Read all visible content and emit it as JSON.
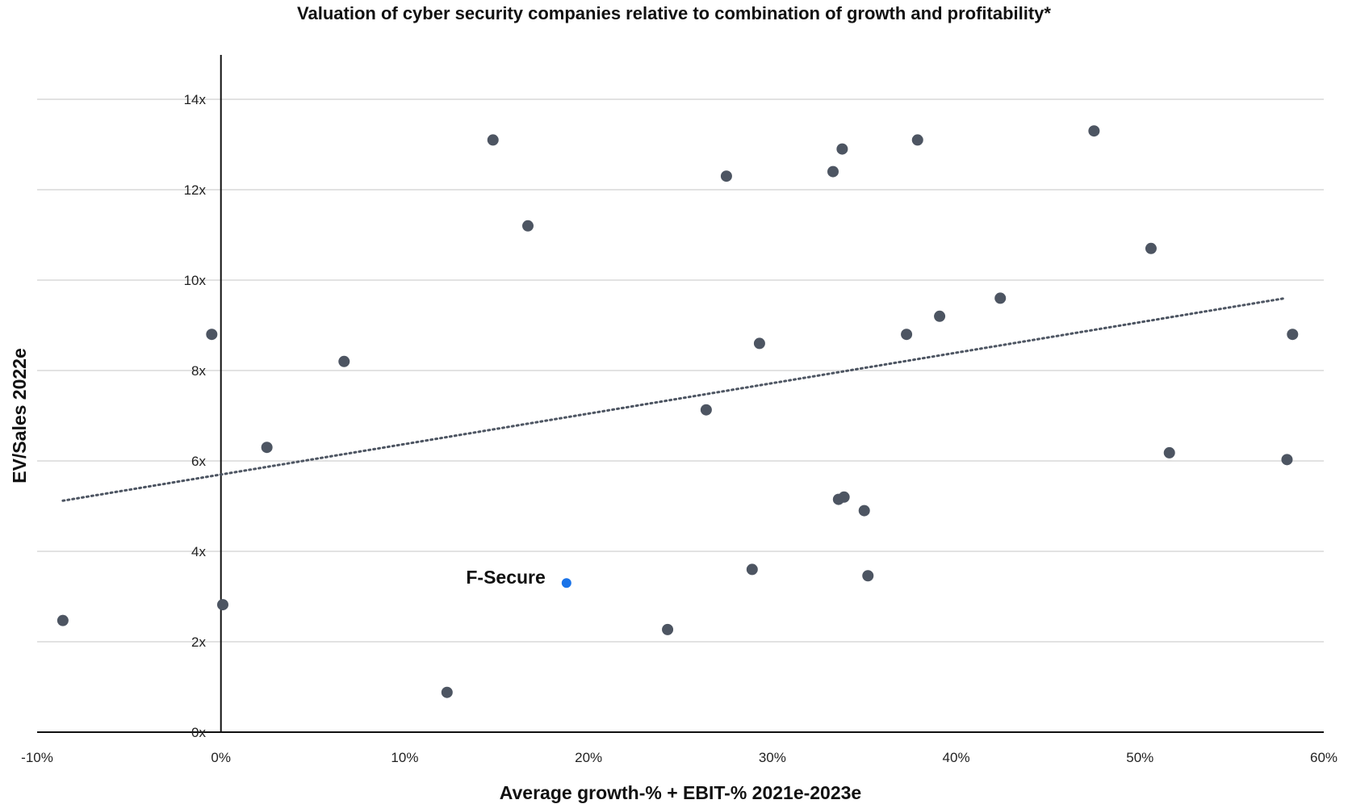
{
  "colors": {
    "point": "#4d5562",
    "highlight": "#1a73e8",
    "trendline": "#4d5562",
    "grid": "#d9d9d9",
    "axis": "#111111"
  },
  "chart_data": {
    "type": "scatter",
    "title": "Valuation of cyber security companies relative to combination of growth and profitability*",
    "xlabel": "Average growth-% + EBIT-% 2021e-2023e",
    "ylabel": "EV/Sales 2022e",
    "xlim": [
      -10,
      60
    ],
    "ylim": [
      0,
      14
    ],
    "x_ticks": [
      -10,
      0,
      10,
      20,
      30,
      40,
      50,
      60
    ],
    "x_tick_labels": [
      "-10%",
      "0%",
      "10%",
      "20%",
      "30%",
      "40%",
      "50%",
      "60%"
    ],
    "y_ticks": [
      0,
      2,
      4,
      6,
      8,
      10,
      12,
      14
    ],
    "y_tick_labels": [
      "0x",
      "2x",
      "4x",
      "6x",
      "8x",
      "10x",
      "12x",
      "14x"
    ],
    "grid": "horizontal",
    "series": [
      {
        "points": [
          [
            -8.6,
            2.47
          ],
          [
            -0.5,
            8.8
          ],
          [
            0.1,
            2.82
          ],
          [
            2.5,
            6.3
          ],
          [
            6.7,
            8.2
          ],
          [
            12.3,
            0.88
          ],
          [
            14.8,
            13.1
          ],
          [
            16.7,
            11.2
          ],
          [
            24.3,
            2.27
          ],
          [
            26.4,
            7.13
          ],
          [
            27.5,
            12.3
          ],
          [
            28.9,
            3.6
          ],
          [
            29.3,
            8.6
          ],
          [
            33.3,
            12.4
          ],
          [
            33.6,
            5.15
          ],
          [
            33.8,
            12.9
          ],
          [
            33.9,
            5.2
          ],
          [
            35.0,
            4.9
          ],
          [
            35.2,
            3.46
          ],
          [
            37.3,
            8.8
          ],
          [
            37.9,
            13.1
          ],
          [
            39.1,
            9.2
          ],
          [
            42.4,
            9.6
          ],
          [
            47.5,
            13.3
          ],
          [
            50.6,
            10.7
          ],
          [
            51.6,
            6.18
          ],
          [
            58.0,
            6.03
          ],
          [
            58.3,
            8.8
          ]
        ]
      },
      {
        "name": "F-Secure",
        "highlight": true,
        "points": [
          [
            18.8,
            3.3
          ]
        ]
      }
    ],
    "trendline": {
      "style": "dotted",
      "from": [
        -8.6,
        5.12
      ],
      "to": [
        57.9,
        9.6
      ]
    }
  }
}
